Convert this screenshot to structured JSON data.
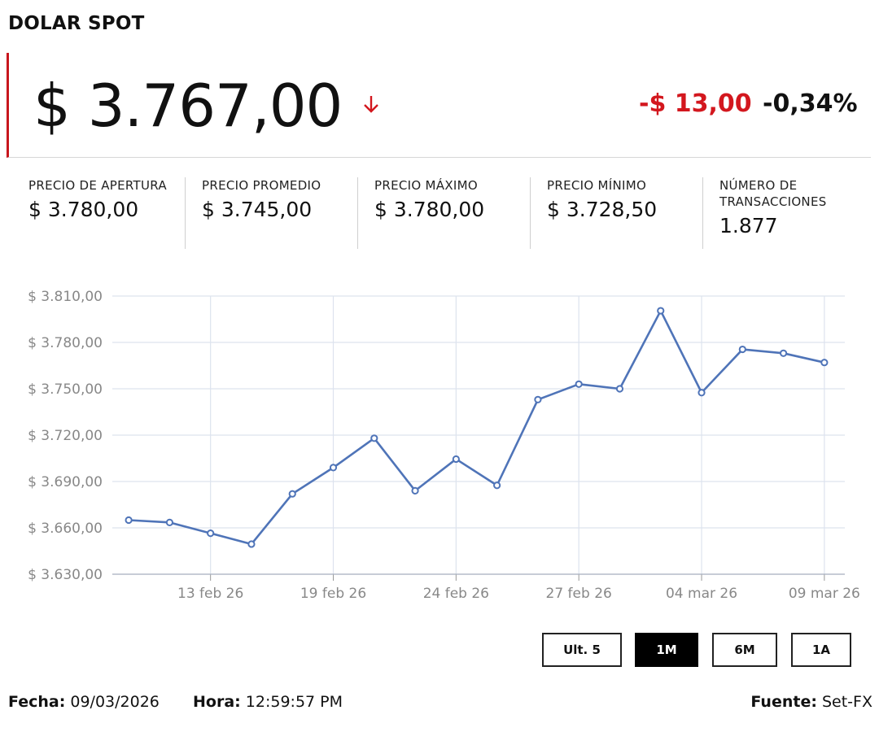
{
  "header": {
    "title": "DOLAR SPOT"
  },
  "quote": {
    "price": "$ 3.767,00",
    "direction_icon": "arrow-down-icon",
    "change": "-$ 13,00",
    "change_pct": "-0,34%"
  },
  "stats": [
    {
      "label": "PRECIO DE APERTURA",
      "value": "$ 3.780,00"
    },
    {
      "label": "PRECIO PROMEDIO",
      "value": "$ 3.745,00"
    },
    {
      "label": "PRECIO MÁXIMO",
      "value": "$ 3.780,00"
    },
    {
      "label": "PRECIO MÍNIMO",
      "value": "$ 3.728,50"
    },
    {
      "label": "NÚMERO DE TRANSACCIONES",
      "value": "1.877"
    }
  ],
  "ranges": {
    "options": [
      "Ult. 5",
      "1M",
      "6M",
      "1A"
    ],
    "selected": "1M"
  },
  "footer": {
    "date_label": "Fecha:",
    "date": "09/03/2026",
    "time_label": "Hora:",
    "time": "12:59:57 PM",
    "source_label": "Fuente:",
    "source": "Set-FX"
  },
  "colors": {
    "accent_red": "#d3171e",
    "line": "#4f74b8",
    "grid": "#dde3ee"
  },
  "chart_data": {
    "type": "line",
    "x": [
      0,
      1,
      2,
      3,
      4,
      5,
      6,
      7,
      8,
      9,
      10,
      11,
      12,
      13,
      14,
      15,
      16,
      17
    ],
    "series": [
      {
        "values": [
          3665,
          3663.5,
          3656.5,
          3649.5,
          3682,
          3699,
          3718,
          3684,
          3704.5,
          3687.5,
          3743,
          3753,
          3750,
          3800.5,
          3747.5,
          3775.5,
          3773,
          3767
        ]
      }
    ],
    "xticks": [
      {
        "x": 2,
        "label": "13 feb 26"
      },
      {
        "x": 5,
        "label": "19 feb 26"
      },
      {
        "x": 8,
        "label": "24 feb 26"
      },
      {
        "x": 11,
        "label": "27 feb 26"
      },
      {
        "x": 14,
        "label": "04 mar 26"
      },
      {
        "x": 17,
        "label": "09 mar 26"
      }
    ],
    "yticks": [
      3630,
      3660,
      3690,
      3720,
      3750,
      3780,
      3810
    ],
    "ytick_labels": [
      "$ 3.630,00",
      "$ 3.660,00",
      "$ 3.690,00",
      "$ 3.720,00",
      "$ 3.750,00",
      "$ 3.780,00",
      "$ 3.810,00"
    ],
    "ylim": [
      3630,
      3810
    ],
    "xlim": [
      -0.4,
      17.5
    ],
    "grid": true
  }
}
